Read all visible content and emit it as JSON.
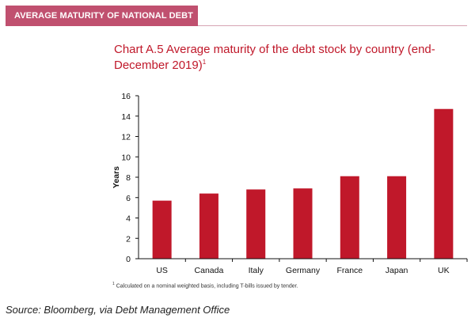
{
  "banner": {
    "title": "AVERAGE MATURITY OF NATIONAL DEBT"
  },
  "chart_data": {
    "type": "bar",
    "title": "Chart A.5 Average maturity of the debt stock by country (end-December 2019)",
    "title_superscript": "1",
    "categories": [
      "US",
      "Canada",
      "Italy",
      "Germany",
      "France",
      "Japan",
      "UK"
    ],
    "values": [
      5.7,
      6.4,
      6.8,
      6.9,
      8.1,
      8.1,
      14.7
    ],
    "ylabel": "Years",
    "xlabel": "",
    "ylim": [
      0,
      16
    ],
    "yticks": [
      0,
      2,
      4,
      6,
      8,
      10,
      12,
      14,
      16
    ],
    "bar_color": "#c0182a",
    "grid": false
  },
  "footnote": {
    "marker": "1",
    "text": "Calculated on a nominal weighted basis, including T-bills issued by tender."
  },
  "source": "Source: Bloomberg, via Debt Management Office"
}
